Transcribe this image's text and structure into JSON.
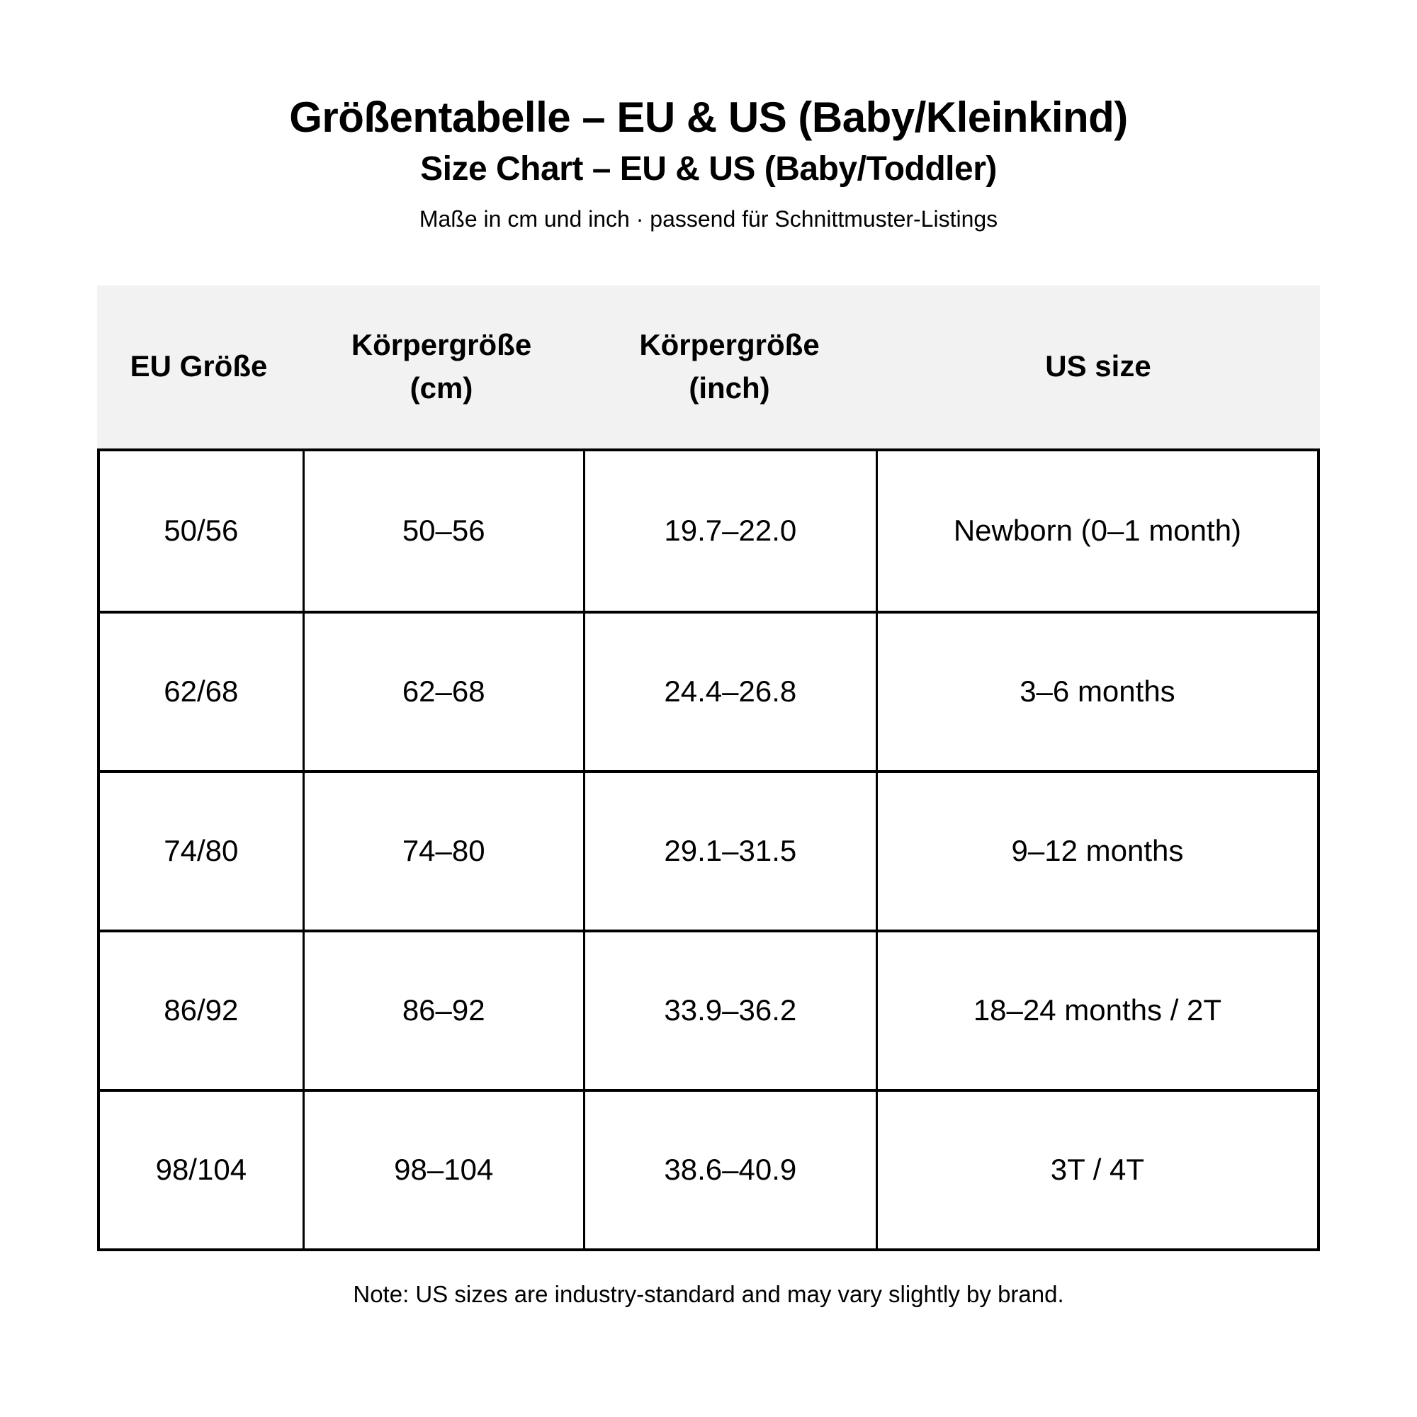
{
  "page": {
    "title": "Größentabelle – EU & US (Baby/Kleinkind)",
    "subtitle": "Size Chart – EU & US (Baby/Toddler)",
    "tagline": "Maße in cm und inch · passend für Schnittmuster-Listings",
    "note": "Note: US sizes are industry-standard and may vary slightly by brand."
  },
  "colors": {
    "background": "#ffffff",
    "text": "#000000",
    "header_band_bg": "#f2f2f2",
    "table_border": "#000000"
  },
  "table": {
    "columns": [
      {
        "label": "EU Größe"
      },
      {
        "label": "Körpergröße\n(cm)"
      },
      {
        "label": "Körpergröße\n(inch)"
      },
      {
        "label": "US size"
      }
    ],
    "rows": [
      [
        "50/56",
        "50–56",
        "19.7–22.0",
        "Newborn (0–1 month)"
      ],
      [
        "62/68",
        "62–68",
        "24.4–26.8",
        "3–6 months"
      ],
      [
        "74/80",
        "74–80",
        "29.1–31.5",
        "9–12 months"
      ],
      [
        "86/92",
        "86–92",
        "33.9–36.2",
        "18–24 months / 2T"
      ],
      [
        "98/104",
        "98–104",
        "38.6–40.9",
        "3T / 4T"
      ]
    ]
  }
}
